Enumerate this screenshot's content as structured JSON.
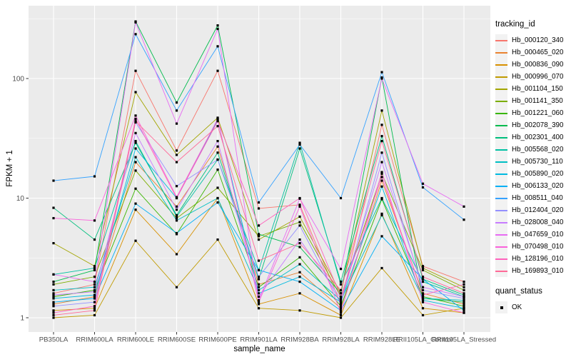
{
  "chart_data": {
    "type": "line",
    "title": "",
    "xlabel": "sample_name",
    "ylabel": "FPKM + 1",
    "x_categories": [
      "PB350LA",
      "RRIM600LA",
      "RRIM600LE",
      "RRIM600SE",
      "RRIM600PE",
      "RRIM901LA",
      "RRIM928BA",
      "RRIM928LA",
      "RRIM928LE",
      "RRII105LA_Control",
      "RRII105LA_Stressed"
    ],
    "y_scale": "log10",
    "y_ticks": [
      1,
      10,
      100
    ],
    "y_tick_labels": [
      "1",
      "10",
      "100"
    ],
    "y_minor_gridlines": [
      3.162,
      31.62,
      316.2
    ],
    "ylim": [
      0.76,
      407
    ],
    "grid": true,
    "legend_position": "right",
    "series": [
      {
        "name": "Hb_000120_340",
        "color": "#F8766D",
        "values": [
          1.6,
          1.9,
          116,
          25,
          116,
          8.2,
          8.8,
          1.3,
          41,
          2.7,
          2.0
        ]
      },
      {
        "name": "Hb_000465_020",
        "color": "#EA8331",
        "values": [
          1.3,
          1.5,
          20,
          8.5,
          27,
          1.9,
          2.4,
          1.2,
          14,
          1.6,
          1.3
        ]
      },
      {
        "name": "Hb_000836_090",
        "color": "#D89000",
        "values": [
          1.15,
          1.2,
          8.0,
          3.4,
          10,
          1.3,
          1.6,
          1.05,
          7.4,
          1.2,
          1.1
        ]
      },
      {
        "name": "Hb_000996_070",
        "color": "#C09B00",
        "values": [
          1.0,
          1.05,
          4.4,
          1.8,
          4.5,
          1.2,
          1.15,
          1.0,
          2.6,
          1.05,
          1.2
        ]
      },
      {
        "name": "Hb_001104_150",
        "color": "#A3A500",
        "values": [
          4.2,
          2.7,
          77,
          23,
          47,
          4.5,
          7.0,
          1.6,
          54,
          2.6,
          1.8
        ]
      },
      {
        "name": "Hb_001141_350",
        "color": "#7CAE00",
        "values": [
          1.9,
          2.2,
          17,
          6.8,
          12.2,
          4.8,
          6.3,
          1.5,
          16,
          2.5,
          1.7
        ]
      },
      {
        "name": "Hb_001221_060",
        "color": "#39B600",
        "values": [
          1.5,
          1.7,
          12,
          5.0,
          17.3,
          1.8,
          3.2,
          1.25,
          9.8,
          1.5,
          1.25
        ]
      },
      {
        "name": "Hb_002078_390",
        "color": "#00BB4E",
        "values": [
          2.0,
          2.5,
          300,
          63,
          278,
          5.0,
          3.9,
          1.6,
          102,
          1.45,
          1.35
        ]
      },
      {
        "name": "Hb_002301_400",
        "color": "#00BF7D",
        "values": [
          8.3,
          4.5,
          29,
          7.2,
          24,
          2.1,
          26,
          2.0,
          33,
          2.1,
          1.55
        ]
      },
      {
        "name": "Hb_005568_020",
        "color": "#00C1A3",
        "values": [
          2.3,
          2.6,
          30,
          7.0,
          21,
          2.5,
          29,
          1.9,
          10,
          2.0,
          1.5
        ]
      },
      {
        "name": "Hb_005730_110",
        "color": "#00BFC4",
        "values": [
          1.7,
          1.8,
          22,
          6.5,
          10,
          1.7,
          2.8,
          1.4,
          7.2,
          1.45,
          1.4
        ]
      },
      {
        "name": "Hb_005890_020",
        "color": "#00BAE0",
        "values": [
          1.45,
          1.55,
          26,
          10,
          45,
          1.6,
          2.2,
          1.35,
          12.5,
          1.4,
          1.2
        ]
      },
      {
        "name": "Hb_006133_020",
        "color": "#00B0F6",
        "values": [
          1.35,
          1.45,
          9.0,
          5.1,
          9.2,
          2.5,
          2.0,
          1.15,
          4.8,
          2.1,
          1.15
        ]
      },
      {
        "name": "Hb_008511_040",
        "color": "#35A2FF",
        "values": [
          14,
          15.2,
          235,
          54,
          186,
          9.2,
          28,
          10,
          113,
          12.3,
          6.6
        ]
      },
      {
        "name": "Hb_012404_020",
        "color": "#9590FF",
        "values": [
          1.25,
          1.35,
          43,
          12.6,
          21,
          2.2,
          5.9,
          1.3,
          24,
          1.7,
          1.45
        ]
      },
      {
        "name": "Hb_028008_040",
        "color": "#C77CFF",
        "values": [
          1.55,
          1.65,
          35,
          8.0,
          30,
          1.5,
          4.5,
          1.45,
          20,
          1.8,
          1.5
        ]
      },
      {
        "name": "Hb_047659_010",
        "color": "#E76BF3",
        "values": [
          2.3,
          2.0,
          295,
          42,
          260,
          1.4,
          9.9,
          2.56,
          100,
          13.2,
          8.5
        ]
      },
      {
        "name": "Hb_070498_010",
        "color": "#FA62DB",
        "values": [
          6.8,
          6.5,
          49,
          10.2,
          46,
          1.35,
          8.5,
          1.1,
          16.5,
          1.35,
          1.1
        ]
      },
      {
        "name": "Hb_128196_010",
        "color": "#FF62BC",
        "values": [
          1.1,
          1.25,
          46,
          10,
          44,
          5.9,
          10,
          1.5,
          15,
          1.55,
          1.9
        ]
      },
      {
        "name": "Hb_169893_010",
        "color": "#FF6A98",
        "values": [
          1.05,
          1.15,
          44,
          20,
          40,
          3.0,
          4.2,
          1.7,
          30,
          2.2,
          1.6
        ]
      }
    ],
    "point_marker": {
      "shape": "square",
      "color": "#000000"
    }
  },
  "legend": {
    "tracking_title": "tracking_id",
    "quant_title": "quant_status",
    "quant_ok_label": "OK"
  },
  "colors": {
    "panel_background": "#EBEBEB",
    "gridline": "#FFFFFF",
    "tick_text": "#4D4D4D",
    "axis_title": "#000000",
    "legend_key_background": "#F2F2F2",
    "point": "#000000"
  }
}
